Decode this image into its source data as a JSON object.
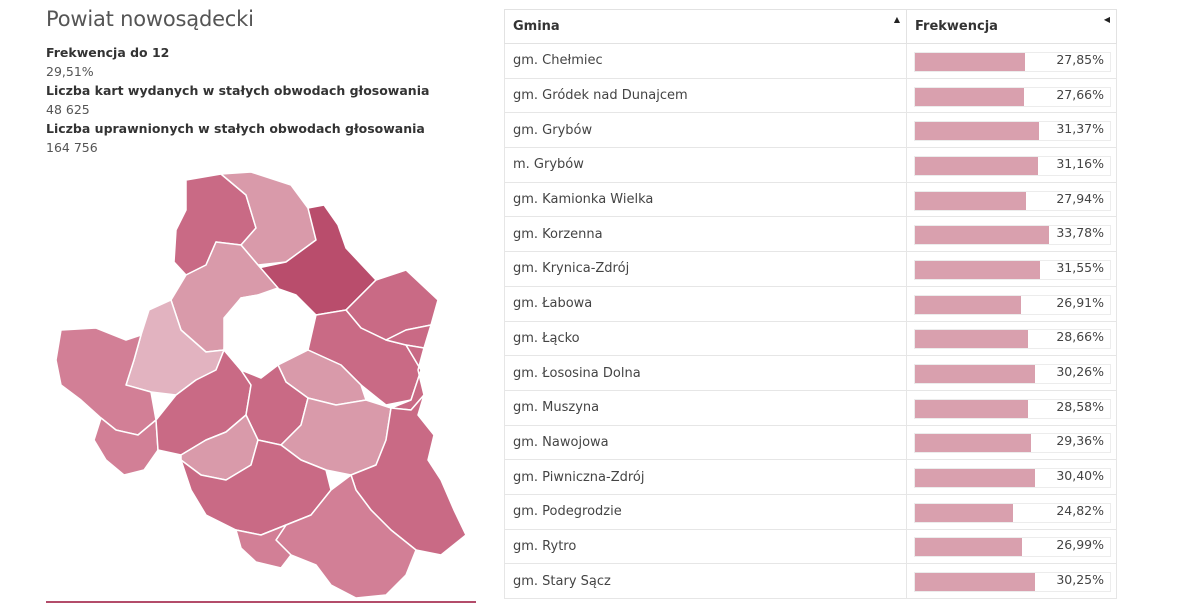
{
  "title": "Powiat nowosądecki",
  "stats": [
    {
      "label": "Frekwencja do 12",
      "value": "29,51%"
    },
    {
      "label": "Liczba kart wydanych w stałych obwodach głosowania",
      "value": "48 625"
    },
    {
      "label": "Liczba uprawnionych w stałych obwodach głosowania",
      "value": "164 756"
    }
  ],
  "table": {
    "col_gmina": "Gmina",
    "col_frekwencja": "Frekwencja",
    "sort_icon_gmina": "sort-asc-icon",
    "sort_icon_frekwencja": "sort-left-icon",
    "bar_color": "#d9a0ae",
    "rows": [
      {
        "name": "gm. Chełmiec",
        "pct": "27,85%",
        "value": 27.85
      },
      {
        "name": "gm. Gródek nad Dunajcem",
        "pct": "27,66%",
        "value": 27.66
      },
      {
        "name": "gm. Grybów",
        "pct": "31,37%",
        "value": 31.37
      },
      {
        "name": "m. Grybów",
        "pct": "31,16%",
        "value": 31.16
      },
      {
        "name": "gm. Kamionka Wielka",
        "pct": "27,94%",
        "value": 27.94
      },
      {
        "name": "gm. Korzenna",
        "pct": "33,78%",
        "value": 33.78
      },
      {
        "name": "gm. Krynica-Zdrój",
        "pct": "31,55%",
        "value": 31.55
      },
      {
        "name": "gm. Łabowa",
        "pct": "26,91%",
        "value": 26.91
      },
      {
        "name": "gm. Łącko",
        "pct": "28,66%",
        "value": 28.66
      },
      {
        "name": "gm. Łososina Dolna",
        "pct": "30,26%",
        "value": 30.26
      },
      {
        "name": "gm. Muszyna",
        "pct": "28,58%",
        "value": 28.58
      },
      {
        "name": "gm. Nawojowa",
        "pct": "29,36%",
        "value": 29.36
      },
      {
        "name": "gm. Piwniczna-Zdrój",
        "pct": "30,40%",
        "value": 30.4
      },
      {
        "name": "gm. Podegrodzie",
        "pct": "24,82%",
        "value": 24.82
      },
      {
        "name": "gm. Rytro",
        "pct": "26,99%",
        "value": 26.99
      },
      {
        "name": "gm. Stary Sącz",
        "pct": "30,25%",
        "value": 30.25
      }
    ]
  },
  "map": {
    "colors": {
      "darkest": "#b94d6c",
      "dark": "#c96a85",
      "medium": "#d27f96",
      "light": "#d99aaa",
      "lighter": "#e2b3c0"
    }
  }
}
